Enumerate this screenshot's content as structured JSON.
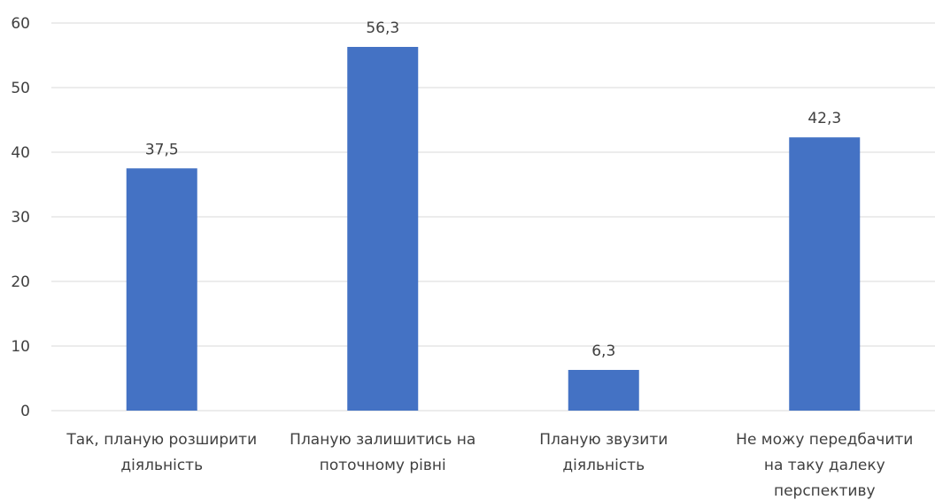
{
  "chart_data": {
    "type": "bar",
    "categories": [
      [
        "Так, планую розширити",
        "діяльність"
      ],
      [
        "Планую залишитись на",
        "поточному рівні"
      ],
      [
        "Планую звузити",
        "діяльність"
      ],
      [
        "Не можу передбачити",
        "на таку далеку",
        "перспективу"
      ]
    ],
    "values": [
      37.5,
      56.3,
      6.3,
      42.3
    ],
    "data_labels": [
      "37,5",
      "56,3",
      "6,3",
      "42,3"
    ],
    "y_ticks": [
      0,
      10,
      20,
      30,
      40,
      50,
      60
    ],
    "ylim": [
      0,
      60
    ],
    "title": "",
    "xlabel": "",
    "ylabel": "",
    "grid": true,
    "legend": "none",
    "colors": {
      "bar": "#4472C4",
      "grid": "#D9D9D9",
      "text": "#404040"
    }
  }
}
